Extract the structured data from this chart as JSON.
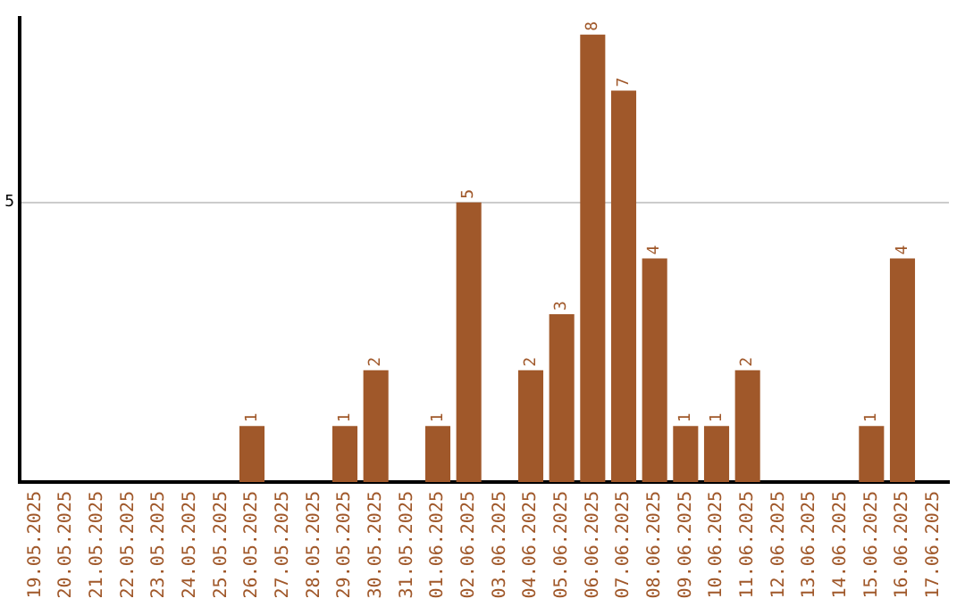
{
  "chart_data": {
    "type": "bar",
    "categories": [
      "19.05.2025",
      "20.05.2025",
      "21.05.2025",
      "22.05.2025",
      "23.05.2025",
      "24.05.2025",
      "25.05.2025",
      "26.05.2025",
      "27.05.2025",
      "28.05.2025",
      "29.05.2025",
      "30.05.2025",
      "31.05.2025",
      "01.06.2025",
      "02.06.2025",
      "03.06.2025",
      "04.06.2025",
      "05.06.2025",
      "06.06.2025",
      "07.06.2025",
      "08.06.2025",
      "09.06.2025",
      "10.06.2025",
      "11.06.2025",
      "12.06.2025",
      "13.06.2025",
      "14.06.2025",
      "15.06.2025",
      "16.06.2025",
      "17.06.2025"
    ],
    "values": [
      0,
      0,
      0,
      0,
      0,
      0,
      0,
      1,
      0,
      0,
      1,
      2,
      0,
      1,
      5,
      0,
      2,
      3,
      8,
      7,
      4,
      1,
      1,
      2,
      0,
      0,
      0,
      1,
      4,
      0
    ],
    "value_labels": [
      null,
      null,
      null,
      null,
      null,
      null,
      null,
      "1",
      null,
      null,
      "1",
      "2",
      null,
      "1",
      "5",
      null,
      "2",
      "3",
      "8",
      "7",
      "4",
      "1",
      "1",
      "2",
      null,
      null,
      null,
      "1",
      "4",
      null
    ],
    "color": "#a0582a",
    "ylim": [
      0,
      8.3
    ],
    "yticks": [
      5
    ],
    "grid": "y"
  }
}
